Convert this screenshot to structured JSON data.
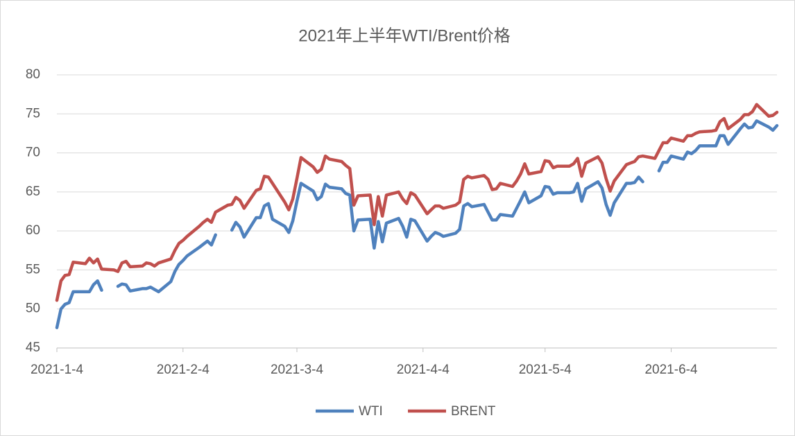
{
  "chart_data": {
    "type": "line",
    "title": "2021年上半年WTI/Brent价格",
    "x": [
      "2021-1-4",
      "2021-1-5",
      "2021-1-6",
      "2021-1-7",
      "2021-1-8",
      "2021-1-11",
      "2021-1-12",
      "2021-1-13",
      "2021-1-14",
      "2021-1-15",
      "2021-1-18",
      "2021-1-19",
      "2021-1-20",
      "2021-1-21",
      "2021-1-22",
      "2021-1-25",
      "2021-1-26",
      "2021-1-27",
      "2021-1-28",
      "2021-1-29",
      "2021-2-1",
      "2021-2-2",
      "2021-2-3",
      "2021-2-4",
      "2021-2-5",
      "2021-2-8",
      "2021-2-9",
      "2021-2-10",
      "2021-2-11",
      "2021-2-12",
      "2021-2-15",
      "2021-2-16",
      "2021-2-17",
      "2021-2-18",
      "2021-2-19",
      "2021-2-22",
      "2021-2-23",
      "2021-2-24",
      "2021-2-25",
      "2021-2-26",
      "2021-3-1",
      "2021-3-2",
      "2021-3-3",
      "2021-3-4",
      "2021-3-5",
      "2021-3-8",
      "2021-3-9",
      "2021-3-10",
      "2021-3-11",
      "2021-3-12",
      "2021-3-15",
      "2021-3-16",
      "2021-3-17",
      "2021-3-18",
      "2021-3-19",
      "2021-3-22",
      "2021-3-23",
      "2021-3-24",
      "2021-3-25",
      "2021-3-26",
      "2021-3-29",
      "2021-3-30",
      "2021-3-31",
      "2021-4-1",
      "2021-4-2",
      "2021-4-5",
      "2021-4-6",
      "2021-4-7",
      "2021-4-8",
      "2021-4-9",
      "2021-4-12",
      "2021-4-13",
      "2021-4-14",
      "2021-4-15",
      "2021-4-16",
      "2021-4-19",
      "2021-4-20",
      "2021-4-21",
      "2021-4-22",
      "2021-4-23",
      "2021-4-26",
      "2021-4-27",
      "2021-4-28",
      "2021-4-29",
      "2021-4-30",
      "2021-5-3",
      "2021-5-4",
      "2021-5-5",
      "2021-5-6",
      "2021-5-7",
      "2021-5-10",
      "2021-5-11",
      "2021-5-12",
      "2021-5-13",
      "2021-5-14",
      "2021-5-17",
      "2021-5-18",
      "2021-5-19",
      "2021-5-20",
      "2021-5-21",
      "2021-5-24",
      "2021-5-25",
      "2021-5-26",
      "2021-5-27",
      "2021-5-28",
      "2021-5-31",
      "2021-6-1",
      "2021-6-2",
      "2021-6-3",
      "2021-6-4",
      "2021-6-7",
      "2021-6-8",
      "2021-6-9",
      "2021-6-10",
      "2021-6-11",
      "2021-6-14",
      "2021-6-15",
      "2021-6-16",
      "2021-6-17",
      "2021-6-18",
      "2021-6-21",
      "2021-6-22",
      "2021-6-23",
      "2021-6-24",
      "2021-6-25",
      "2021-6-28",
      "2021-6-29",
      "2021-6-30"
    ],
    "series": [
      {
        "name": "WTI",
        "color": "#4f81bd",
        "values": [
          47.6,
          50.0,
          50.6,
          50.8,
          52.2,
          52.2,
          52.2,
          53.1,
          53.6,
          52.4,
          null,
          52.9,
          53.2,
          53.1,
          52.3,
          52.6,
          52.6,
          52.8,
          52.5,
          52.2,
          53.5,
          54.8,
          55.7,
          56.2,
          56.8,
          57.9,
          58.3,
          58.7,
          58.2,
          59.5,
          null,
          60.1,
          61.1,
          60.5,
          59.2,
          61.7,
          61.7,
          63.2,
          63.5,
          61.5,
          60.6,
          59.8,
          61.3,
          63.8,
          66.1,
          65.1,
          64.0,
          64.4,
          66.0,
          65.6,
          65.4,
          64.8,
          64.6,
          60.0,
          61.4,
          61.5,
          57.8,
          61.2,
          58.6,
          61.0,
          61.6,
          60.6,
          59.2,
          61.5,
          61.3,
          58.7,
          59.3,
          59.8,
          59.6,
          59.3,
          59.7,
          60.2,
          63.2,
          63.5,
          63.1,
          63.4,
          62.4,
          61.4,
          61.4,
          62.1,
          61.9,
          62.9,
          63.9,
          65.0,
          63.6,
          64.5,
          65.7,
          65.6,
          64.7,
          64.9,
          64.9,
          65.0,
          66.1,
          63.8,
          65.4,
          66.3,
          65.5,
          63.4,
          62.0,
          63.6,
          66.1,
          66.1,
          66.2,
          66.9,
          66.3,
          null,
          67.7,
          68.8,
          68.8,
          69.6,
          69.2,
          70.1,
          69.9,
          70.3,
          70.9,
          70.9,
          70.9,
          72.2,
          72.2,
          71.1,
          73.1,
          73.7,
          73.2,
          73.3,
          74.1,
          73.3,
          72.9,
          73.5
        ]
      },
      {
        "name": "BRENT",
        "color": "#c0504d",
        "values": [
          51.1,
          53.6,
          54.3,
          54.4,
          56.0,
          55.8,
          56.5,
          55.9,
          56.4,
          55.1,
          55.0,
          54.8,
          55.9,
          56.1,
          55.4,
          55.5,
          55.9,
          55.8,
          55.5,
          55.9,
          56.4,
          57.5,
          58.4,
          58.8,
          59.3,
          60.6,
          61.1,
          61.5,
          61.1,
          62.4,
          63.3,
          63.4,
          64.3,
          63.9,
          62.9,
          65.2,
          65.4,
          67.0,
          66.9,
          66.1,
          63.7,
          62.7,
          64.1,
          66.7,
          69.4,
          68.2,
          67.5,
          67.9,
          69.6,
          69.2,
          68.9,
          68.4,
          68.0,
          63.3,
          64.5,
          64.6,
          60.8,
          64.4,
          61.9,
          64.6,
          65.0,
          64.1,
          63.5,
          64.9,
          64.6,
          62.2,
          62.7,
          63.2,
          63.2,
          62.9,
          63.3,
          63.7,
          66.6,
          67.0,
          66.8,
          67.1,
          66.6,
          65.3,
          65.4,
          66.1,
          65.7,
          66.4,
          67.3,
          68.6,
          67.3,
          67.6,
          69.0,
          68.9,
          68.1,
          68.3,
          68.3,
          68.6,
          69.3,
          67.0,
          68.7,
          69.5,
          68.7,
          66.7,
          65.1,
          66.4,
          68.5,
          68.7,
          68.9,
          69.5,
          69.6,
          69.3,
          70.3,
          71.3,
          71.3,
          71.9,
          71.5,
          72.2,
          72.2,
          72.5,
          72.7,
          72.8,
          72.9,
          74.0,
          74.4,
          73.1,
          74.3,
          74.9,
          74.9,
          75.3,
          76.2,
          74.7,
          74.8,
          75.2
        ]
      }
    ],
    "xlim": [
      "2021-1-4",
      "2021-6-30"
    ],
    "xticks": [
      "2021-1-4",
      "2021-2-4",
      "2021-3-4",
      "2021-4-4",
      "2021-5-4",
      "2021-6-4"
    ],
    "ylim": [
      45,
      80
    ],
    "yticks": [
      45,
      50,
      55,
      60,
      65,
      70,
      75,
      80
    ],
    "grid": true,
    "legend": "bottom"
  }
}
